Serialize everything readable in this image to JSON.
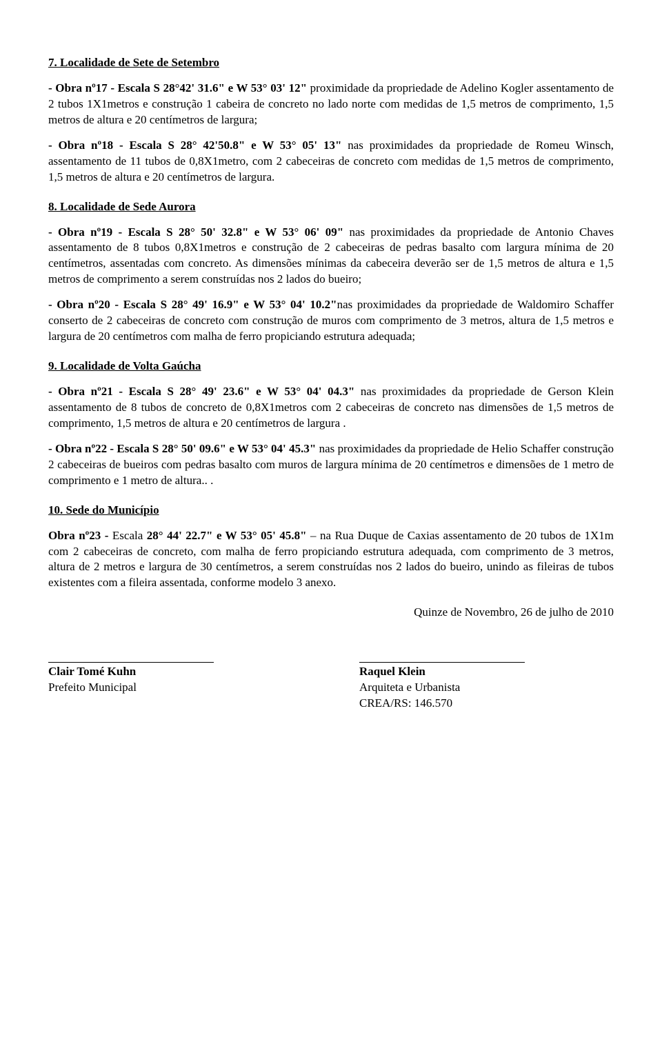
{
  "s7": {
    "title": "7. Localidade de Sete de Setembro",
    "p1a": "- Obra nº17 - Escala S 28°42' 31.6\" e W 53° 03' 12\"",
    "p1b": " proximidade da propriedade de Adelino Kogler assentamento de 2 tubos 1X1metros e construção 1 cabeira de concreto no lado norte com medidas de 1,5 metros de comprimento, 1,5 metros de altura e 20 centímetros de largura;",
    "p2a": "- Obra nº18 - Escala S 28° 42'50.8\" e W 53° 05' 13\"",
    "p2b": " nas proximidades  da propriedade de Romeu Winsch, assentamento de 11 tubos de 0,8X1metro, com 2 cabeceiras de concreto com medidas de 1,5 metros de comprimento, 1,5 metros de altura e 20 centímetros de largura."
  },
  "s8": {
    "title": "8. Localidade de Sede Aurora",
    "p1a": "- Obra nº19 - Escala S 28° 50' 32.8\" e W 53° 06' 09\"",
    "p1b": " nas proximidades da propriedade de Antonio Chaves assentamento de 8 tubos 0,8X1metros e construção de 2 cabeceiras de pedras basalto com largura mínima de 20 centímetros, assentadas com concreto. As dimensões mínimas da cabeceira deverão ser de 1,5 metros de altura e 1,5 metros de comprimento a serem construídas nos 2 lados do bueiro;",
    "p2a": "- Obra nº20 - Escala S 28° 49' 16.9\" e W 53° 04' 10.2\"",
    "p2b": "nas proximidades da propriedade de Waldomiro Schaffer  conserto de 2 cabeceiras de concreto com construção de muros com comprimento de 3 metros, altura de 1,5 metros e largura de 20 centímetros com malha de ferro propiciando estrutura adequada;"
  },
  "s9": {
    "title": "9. Localidade de Volta Gaúcha",
    "p1a": "- Obra nº21 - Escala S 28° 49' 23.6\" e W 53° 04' 04.3\"",
    "p1b": " nas proximidades da propriedade de Gerson Klein assentamento de 8 tubos de concreto de 0,8X1metros com 2 cabeceiras de concreto nas dimensões de 1,5 metros de comprimento, 1,5 metros de altura e 20 centímetros de largura .",
    "p2a": "- Obra nº22 - Escala S 28° 50' 09.6\" e W 53° 04' 45.3\"",
    "p2b": "  nas proximidades da propriedade de Helio Schaffer construção 2 cabeceiras de bueiros com pedras basalto com muros de largura mínima de 20 centímetros e dimensões de 1 metro de comprimento e 1 metro de altura.. ."
  },
  "s10": {
    "title": "10. Sede do Município",
    "p1a": "Obra nº23 - ",
    "p1b": "Escala ",
    "p1c": "28° 44' 22.7\" e W 53° 05' 45.8\"",
    "p1d": " – na Rua Duque de Caxias assentamento de 20 tubos de 1X1m com 2 cabeceiras de concreto, com malha de ferro propiciando estrutura adequada, com comprimento de 3 metros, altura de 2 metros e largura de 30 centímetros, a serem construídas nos 2 lados do bueiro, unindo as fileiras de tubos existentes com a fileira assentada, conforme modelo 3 anexo."
  },
  "date": "Quinze de Novembro, 26 de julho de 2010",
  "sig": {
    "left_name": "Clair Tomé Kuhn",
    "left_title": "Prefeito Municipal",
    "right_name": "Raquel Klein",
    "right_title": "Arquiteta e Urbanista",
    "right_crea": "CREA/RS: 146.570"
  }
}
